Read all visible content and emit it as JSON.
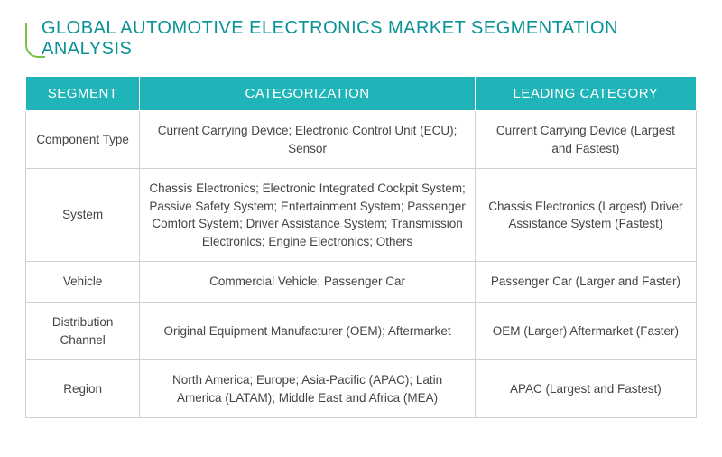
{
  "title": "GLOBAL AUTOMOTIVE ELECTRONICS MARKET SEGMENTATION ANALYSIS",
  "colors": {
    "title_color": "#0a9396",
    "accent_color": "#7ac142",
    "header_bg": "#1fb5b8",
    "header_text": "#ffffff",
    "cell_border": "#d0d0d0",
    "cell_text": "#444444",
    "background": "#ffffff"
  },
  "table": {
    "columns": [
      "SEGMENT",
      "CATEGORIZATION",
      "LEADING CATEGORY"
    ],
    "column_widths_pct": [
      17,
      50,
      33
    ],
    "rows": [
      {
        "segment": "Component Type",
        "categorization": "Current Carrying Device; Electronic Control Unit (ECU); Sensor",
        "leading": "Current Carrying Device (Largest and Fastest)"
      },
      {
        "segment": "System",
        "categorization": "Chassis Electronics; Electronic Integrated Cockpit System; Passive Safety System; Entertainment System; Passenger Comfort System; Driver Assistance System; Transmission Electronics; Engine Electronics; Others",
        "leading": "Chassis Electronics (Largest) Driver Assistance System (Fastest)"
      },
      {
        "segment": "Vehicle",
        "categorization": "Commercial Vehicle; Passenger Car",
        "leading": "Passenger Car (Larger and Faster)"
      },
      {
        "segment": "Distribution Channel",
        "categorization": "Original Equipment Manufacturer (OEM); Aftermarket",
        "leading": "OEM (Larger) Aftermarket (Faster)"
      },
      {
        "segment": "Region",
        "categorization": "North America; Europe; Asia-Pacific (APAC); Latin America (LATAM); Middle East and Africa (MEA)",
        "leading": "APAC (Largest and Fastest)"
      }
    ]
  }
}
